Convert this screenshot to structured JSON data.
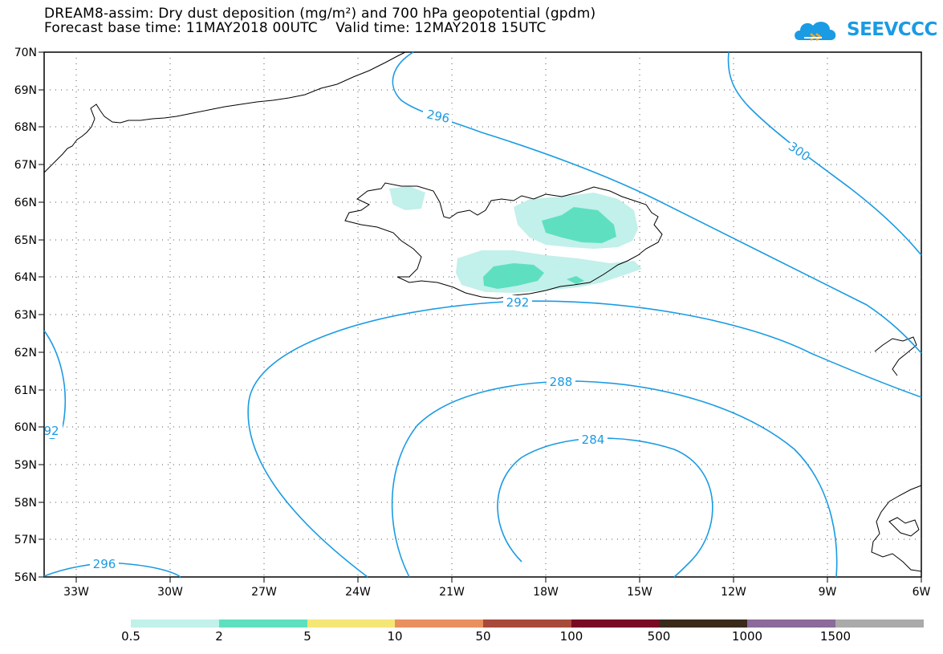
{
  "title": {
    "line1": "DREAM8-assim: Dry dust deposition (mg/m²) and 700 hPa geopotential (gpdm)",
    "line2": "Forecast base time: 11MAY2018 00UTC    Valid time: 12MAY2018 15UTC"
  },
  "logo": {
    "text": "SEEVCCC",
    "icon": "cloud-logo-icon",
    "color": "#1a9be3"
  },
  "map": {
    "lat_labels": [
      "70N",
      "69N",
      "68N",
      "67N",
      "66N",
      "65N",
      "64N",
      "63N",
      "62N",
      "61N",
      "60N",
      "59N",
      "58N",
      "57N",
      "56N"
    ],
    "lon_labels": [
      "33W",
      "30W",
      "27W",
      "24W",
      "21W",
      "18W",
      "15W",
      "12W",
      "9W",
      "6W"
    ],
    "contour_color": "#1a9be3",
    "contour_labels": {
      "c296_top": "296",
      "c300": "300",
      "c292_mid": "292",
      "c288": "288",
      "c284": "284",
      "c292_left": "92",
      "c296_bottom": "296"
    },
    "dust_colors": {
      "low": "#c2f0ea",
      "mid": "#5ee0c0"
    }
  },
  "legend": {
    "colors": [
      "#c2f0ea",
      "#5ee0c0",
      "#f5e678",
      "#e89060",
      "#a84a3a",
      "#7a0a24",
      "#3a2a1a",
      "#8c6a9c",
      "#aaaaaa"
    ],
    "labels": [
      "0.5",
      "2",
      "5",
      "10",
      "50",
      "100",
      "500",
      "1000",
      "1500"
    ]
  }
}
